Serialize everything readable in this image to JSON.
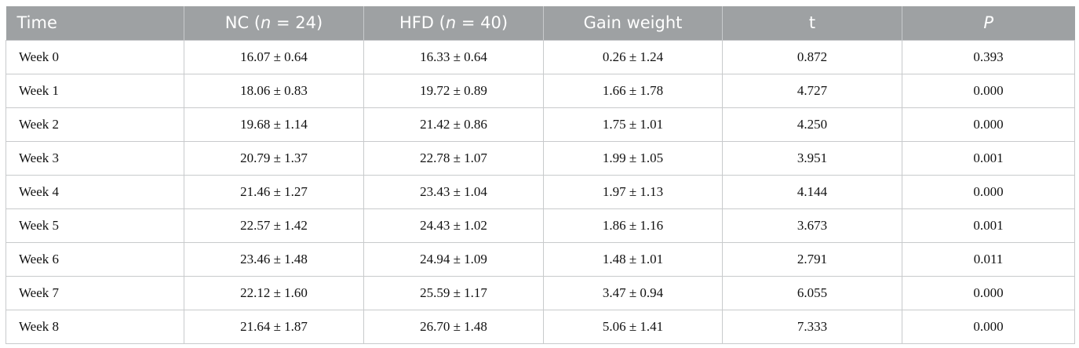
{
  "table": {
    "headers": [
      {
        "pre": "Time",
        "italic": "",
        "post": ""
      },
      {
        "pre": "NC (",
        "italic": "n",
        "post": " = 24)"
      },
      {
        "pre": "HFD (",
        "italic": "n",
        "post": " = 40)"
      },
      {
        "pre": "Gain weight",
        "italic": "",
        "post": ""
      },
      {
        "pre": "t",
        "italic": "",
        "post": ""
      },
      {
        "pre": "",
        "italic": "P",
        "post": ""
      }
    ],
    "rows": [
      [
        "Week 0",
        "16.07 ± 0.64",
        "16.33 ± 0.64",
        "0.26 ± 1.24",
        "0.872",
        "0.393"
      ],
      [
        "Week 1",
        "18.06 ± 0.83",
        "19.72 ± 0.89",
        "1.66 ± 1.78",
        "4.727",
        "0.000"
      ],
      [
        "Week 2",
        "19.68 ± 1.14",
        "21.42 ± 0.86",
        "1.75 ± 1.01",
        "4.250",
        "0.000"
      ],
      [
        "Week 3",
        "20.79 ± 1.37",
        "22.78 ± 1.07",
        "1.99 ± 1.05",
        "3.951",
        "0.001"
      ],
      [
        "Week 4",
        "21.46 ± 1.27",
        "23.43 ± 1.04",
        "1.97 ± 1.13",
        "4.144",
        "0.000"
      ],
      [
        "Week 5",
        "22.57 ± 1.42",
        "24.43 ± 1.02",
        "1.86 ± 1.16",
        "3.673",
        "0.001"
      ],
      [
        "Week 6",
        "23.46 ± 1.48",
        "24.94 ± 1.09",
        "1.48 ± 1.01",
        "2.791",
        "0.011"
      ],
      [
        "Week 7",
        "22.12 ± 1.60",
        "25.59 ± 1.17",
        "3.47 ± 0.94",
        "6.055",
        "0.000"
      ],
      [
        "Week 8",
        "21.64 ± 1.87",
        "26.70 ± 1.48",
        "5.06 ± 1.41",
        "7.333",
        "0.000"
      ]
    ]
  },
  "colors": {
    "header_background": "#9ea1a3",
    "header_text": "#ffffff",
    "grid_lines": "#c8cacc",
    "body_text": "#111111"
  }
}
